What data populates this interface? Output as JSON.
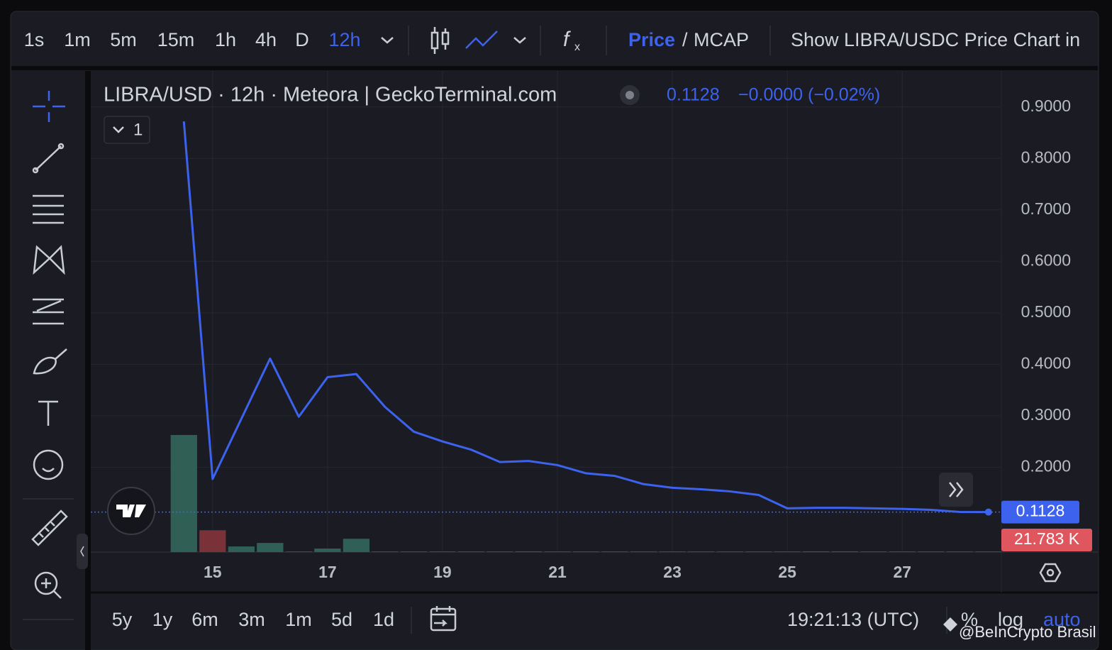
{
  "toolbar": {
    "intervals": [
      "1s",
      "1m",
      "5m",
      "15m",
      "1h",
      "4h",
      "D",
      "12h"
    ],
    "price": "Price",
    "separator": "/",
    "mcap": "MCAP",
    "show_pair": "Show LIBRA/USDC Price Chart in"
  },
  "chart_data": {
    "type": "line",
    "title": "LIBRA/USD · 12h · Meteora | GeckoTerminal.com",
    "indicator_count": "1",
    "last_price": "0.1128",
    "change": "−0.0000 (−0.02%)",
    "color": "#3d63ee",
    "x": [
      14.5,
      15,
      15.5,
      16,
      16.5,
      17,
      17.5,
      18,
      18.5,
      19,
      19.5,
      20,
      20.5,
      21,
      21.5,
      22,
      22.5,
      23,
      23.5,
      24,
      24.5,
      25,
      25.5,
      26,
      26.5,
      27,
      27.5,
      28,
      28.5
    ],
    "values": [
      0.872,
      0.177,
      0.294,
      0.411,
      0.298,
      0.375,
      0.381,
      0.317,
      0.269,
      0.25,
      0.234,
      0.21,
      0.212,
      0.204,
      0.188,
      0.183,
      0.167,
      0.16,
      0.157,
      0.153,
      0.146,
      0.12,
      0.121,
      0.121,
      0.12,
      0.119,
      0.117,
      0.113,
      0.1128
    ],
    "volume": {
      "values": [
        3650000,
        680000,
        175000,
        285000,
        22000,
        110000,
        415000,
        22000,
        22000,
        22000,
        22000,
        22000,
        22000,
        22000,
        22000,
        22000,
        22000,
        22000,
        22000,
        22000,
        22000,
        22000,
        22000,
        22000,
        22000,
        22000,
        22000,
        22000,
        21783
      ],
      "colors": [
        "#2f5f55",
        "#7a3238",
        "#2f5f55",
        "#2f5f55",
        "#7a3238",
        "#2f5f55",
        "#2f5f55",
        "#7a3238",
        "#7a3238",
        "#7a3238",
        "#7a3238",
        "#7a3238",
        "#2f5f55",
        "#7a3238",
        "#7a3238",
        "#7a3238",
        "#7a3238",
        "#7a3238",
        "#7a3238",
        "#7a3238",
        "#7a3238",
        "#7a3238",
        "#2f5f55",
        "#2f5f55",
        "#7a3238",
        "#7a3238",
        "#7a3238",
        "#7a3238",
        "#7a3238"
      ],
      "lim": [
        0,
        15000000
      ],
      "last_label": "21.783 K"
    },
    "xlim": [
      12.88,
      28.7
    ],
    "xticks": [
      15,
      17,
      19,
      21,
      23,
      25,
      27
    ],
    "ylim": [
      0.035,
      0.97
    ],
    "yticks": [
      {
        "value": 0.2,
        "label": "0.2000"
      },
      {
        "value": 0.3,
        "label": "0.3000"
      },
      {
        "value": 0.4,
        "label": "0.4000"
      },
      {
        "value": 0.5,
        "label": "0.5000"
      },
      {
        "value": 0.6,
        "label": "0.6000"
      },
      {
        "value": 0.7,
        "label": "0.7000"
      },
      {
        "value": 0.8,
        "label": "0.8000"
      },
      {
        "value": 0.9,
        "label": "0.9000"
      }
    ],
    "grid": true
  },
  "footer": {
    "ranges": [
      "5y",
      "1y",
      "6m",
      "3m",
      "1m",
      "5d",
      "1d"
    ],
    "time": "19:21:13 (UTC)",
    "percent": "%",
    "log": "log",
    "auto": "auto",
    "watermark": "@BeInCrypto Brasil"
  }
}
